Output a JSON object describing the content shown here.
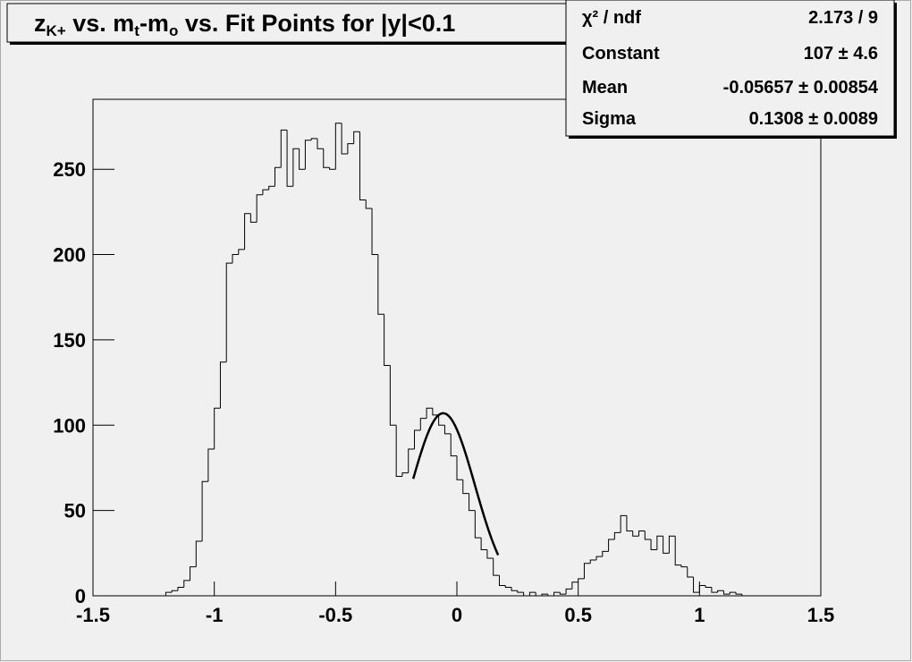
{
  "chart_data": {
    "type": "histogram",
    "title": [
      {
        "text": "z"
      },
      {
        "text": "K+",
        "sub": true
      },
      {
        "text": " vs. m"
      },
      {
        "text": "t",
        "sub": true
      },
      {
        "text": "-m"
      },
      {
        "text": "o",
        "sub": true
      },
      {
        "text": " vs. Fit Points for |y|<0.1"
      }
    ],
    "bins": [
      -1.5,
      -1.475,
      -1.45,
      -1.425,
      -1.4,
      -1.375,
      -1.35,
      -1.325,
      -1.3,
      -1.275,
      -1.25,
      -1.225,
      -1.2,
      -1.175,
      -1.15,
      -1.125,
      -1.1,
      -1.075,
      -1.05,
      -1.025,
      -1.0,
      -0.975,
      -0.95,
      -0.925,
      -0.9,
      -0.875,
      -0.85,
      -0.825,
      -0.8,
      -0.775,
      -0.75,
      -0.725,
      -0.7,
      -0.675,
      -0.65,
      -0.625,
      -0.6,
      -0.575,
      -0.55,
      -0.525,
      -0.5,
      -0.475,
      -0.45,
      -0.425,
      -0.4,
      -0.375,
      -0.35,
      -0.325,
      -0.3,
      -0.275,
      -0.25,
      -0.225,
      -0.2,
      -0.175,
      -0.15,
      -0.125,
      -0.1,
      -0.075,
      -0.05,
      -0.025,
      0,
      0.025,
      0.05,
      0.075,
      0.1,
      0.125,
      0.15,
      0.175,
      0.2,
      0.225,
      0.25,
      0.275,
      0.3,
      0.325,
      0.35,
      0.375,
      0.4,
      0.425,
      0.45,
      0.475,
      0.5,
      0.525,
      0.55,
      0.575,
      0.6,
      0.625,
      0.65,
      0.675,
      0.7,
      0.725,
      0.75,
      0.775,
      0.8,
      0.825,
      0.85,
      0.875,
      0.9,
      0.925,
      0.95,
      0.975,
      1.0,
      1.025,
      1.05,
      1.075,
      1.1,
      1.125,
      1.15,
      1.175,
      1.2,
      1.225,
      1.25,
      1.275,
      1.3,
      1.325,
      1.35,
      1.375,
      1.4,
      1.425,
      1.45,
      1.475,
      1.5
    ],
    "values": [
      0,
      0,
      0,
      0,
      0,
      0,
      0,
      0,
      0,
      0,
      0,
      0,
      2,
      3,
      5,
      9,
      17,
      32,
      67,
      86,
      110,
      137,
      195,
      200,
      203,
      224,
      219,
      235,
      238,
      240,
      251,
      273,
      240,
      262,
      250,
      267,
      268,
      262,
      251,
      250,
      277,
      259,
      265,
      272,
      232,
      227,
      200,
      165,
      135,
      100,
      70,
      72,
      86,
      97,
      104,
      110,
      106,
      100,
      95,
      82,
      68,
      60,
      50,
      34,
      27,
      22,
      12,
      6,
      5,
      3,
      2,
      0,
      2,
      0,
      1,
      0,
      2,
      1,
      4,
      8,
      10,
      19,
      21,
      23,
      26,
      33,
      37,
      47,
      38,
      35,
      38,
      33,
      27,
      35,
      25,
      35,
      18,
      17,
      11,
      2,
      6,
      5,
      2,
      3,
      1,
      2,
      1,
      0,
      0,
      0,
      0,
      0,
      0,
      0,
      0,
      0,
      0,
      0,
      0,
      0
    ],
    "color": "#000000",
    "xlim": [
      -1.5,
      1.5
    ],
    "xticks": [
      -1.5,
      -1,
      -0.5,
      0,
      0.5,
      1,
      1.5
    ],
    "ylim": [
      0,
      291
    ],
    "yticks": [
      0,
      50,
      100,
      150,
      200,
      250
    ],
    "fit": {
      "constant": 107,
      "mean": -0.05657,
      "sigma": 0.1308,
      "xrange": [
        -0.18,
        0.17
      ]
    },
    "stats": [
      {
        "name": "χ² / ndf",
        "text": "2.173 / 9"
      },
      {
        "name": "Constant",
        "text": "107 ± 4.6"
      },
      {
        "name": "Mean",
        "text": "-0.05657 ± 0.00854"
      },
      {
        "name": "Sigma",
        "text": "0.1308 ± 0.0089"
      }
    ]
  }
}
